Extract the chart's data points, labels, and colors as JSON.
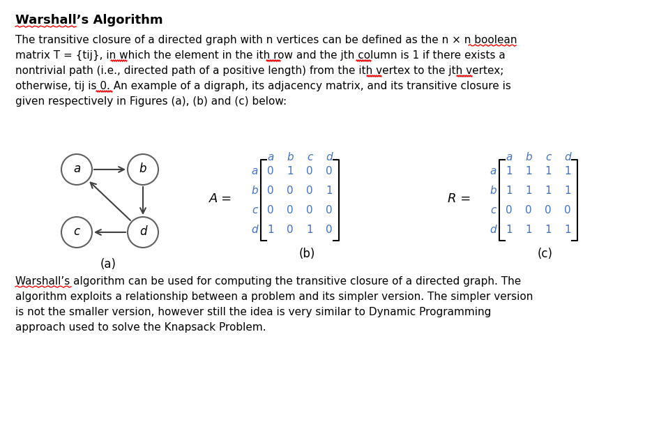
{
  "title": "Warshall’s Algorithm",
  "paragraph1_lines": [
    "The transitive closure of a directed graph with n vertices can be defined as the n × n boolean",
    "matrix T = {tij}, in which the element in the ith row and the jth column is 1 if there exists a",
    "nontrivial path (i.e., directed path of a positive length) from the ith vertex to the jth vertex;",
    "otherwise, tij is 0. An example of a digraph, its adjacency matrix, and its transitive closure is",
    "given respectively in Figures (a), (b) and (c) below:"
  ],
  "paragraph2_lines": [
    "Warshall’s algorithm can be used for computing the transitive closure of a directed graph. The",
    "algorithm exploits a relationship between a problem and its simpler version. The simpler version",
    "is not the smaller version, however still the idea is very similar to Dynamic Programming",
    "approach used to solve the Knapsack Problem."
  ],
  "graph_edges": [
    [
      "a",
      "b"
    ],
    [
      "b",
      "d"
    ],
    [
      "d",
      "a"
    ],
    [
      "d",
      "c"
    ]
  ],
  "matrix_A_label": "A =",
  "matrix_A_rows": [
    "a",
    "b",
    "c",
    "d"
  ],
  "matrix_A_cols": [
    "a",
    "b",
    "c",
    "d"
  ],
  "matrix_A": [
    [
      0,
      1,
      0,
      0
    ],
    [
      0,
      0,
      0,
      1
    ],
    [
      0,
      0,
      0,
      0
    ],
    [
      1,
      0,
      1,
      0
    ]
  ],
  "matrix_R_label": "R =",
  "matrix_R_rows": [
    "a",
    "b",
    "c",
    "d"
  ],
  "matrix_R_cols": [
    "a",
    "b",
    "c",
    "d"
  ],
  "matrix_R": [
    [
      1,
      1,
      1,
      1
    ],
    [
      1,
      1,
      1,
      1
    ],
    [
      0,
      0,
      0,
      0
    ],
    [
      1,
      1,
      1,
      1
    ]
  ],
  "caption_a": "(a)",
  "caption_b": "(b)",
  "caption_c": "(c)",
  "bg_color": "#ffffff",
  "text_color": "#000000",
  "matrix_color": "#4472c4",
  "node_color": "#595959"
}
